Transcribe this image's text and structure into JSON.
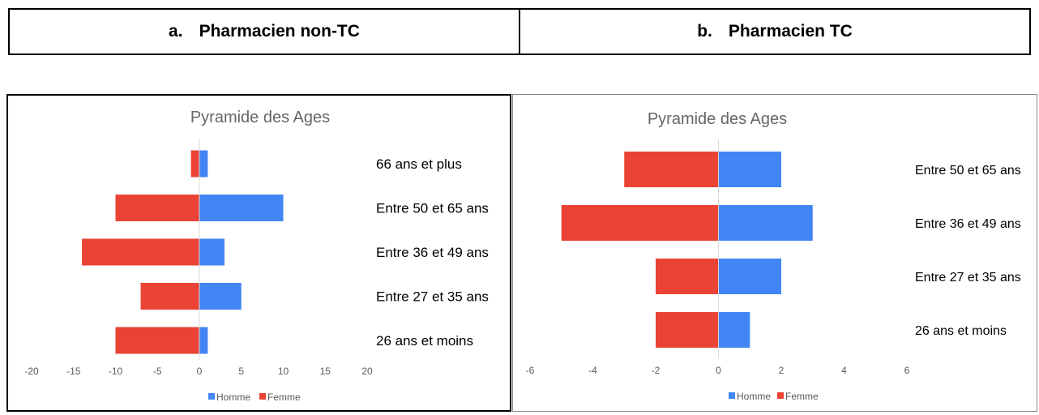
{
  "header": {
    "col_a": {
      "letter": "a.",
      "title": "Pharmacien non-TC"
    },
    "col_b": {
      "letter": "b.",
      "title": "Pharmacien TC"
    }
  },
  "colors": {
    "homme": "#4285f4",
    "femme": "#ea4335",
    "axis_text": "#595959",
    "title": "#666666",
    "category_text": "#000000"
  },
  "chart_data": [
    {
      "type": "bar",
      "orientation": "horizontal",
      "stacked": "diverging",
      "title": "Pyramide des Ages",
      "categories": [
        "66 ans et plus",
        "Entre 50 et 65 ans",
        "Entre 36 et 49 ans",
        "Entre 27 et 35 ans",
        "26 ans et moins"
      ],
      "series": [
        {
          "name": "Homme",
          "values": [
            1,
            10,
            3,
            5,
            1
          ]
        },
        {
          "name": "Femme",
          "values": [
            -1,
            -10,
            -14,
            -7,
            -10
          ]
        }
      ],
      "xlim": [
        -20,
        20
      ],
      "xticks": [
        "-20",
        "-15",
        "-10",
        "-5",
        "0",
        "5",
        "10",
        "15",
        "20"
      ],
      "grid": false,
      "legend": "bottom"
    },
    {
      "type": "bar",
      "orientation": "horizontal",
      "stacked": "diverging",
      "title": "Pyramide des Ages",
      "categories": [
        "Entre 50 et 65 ans",
        "Entre 36 et 49 ans",
        "Entre 27 et 35 ans",
        "26 ans et moins"
      ],
      "series": [
        {
          "name": "Homme",
          "values": [
            2,
            3,
            2,
            1
          ]
        },
        {
          "name": "Femme",
          "values": [
            -3,
            -5,
            -2,
            -2
          ]
        }
      ],
      "xlim": [
        -6,
        6
      ],
      "xticks": [
        "-6",
        "-4",
        "-2",
        "0",
        "2",
        "4",
        "6"
      ],
      "grid": false,
      "legend": "bottom"
    }
  ]
}
